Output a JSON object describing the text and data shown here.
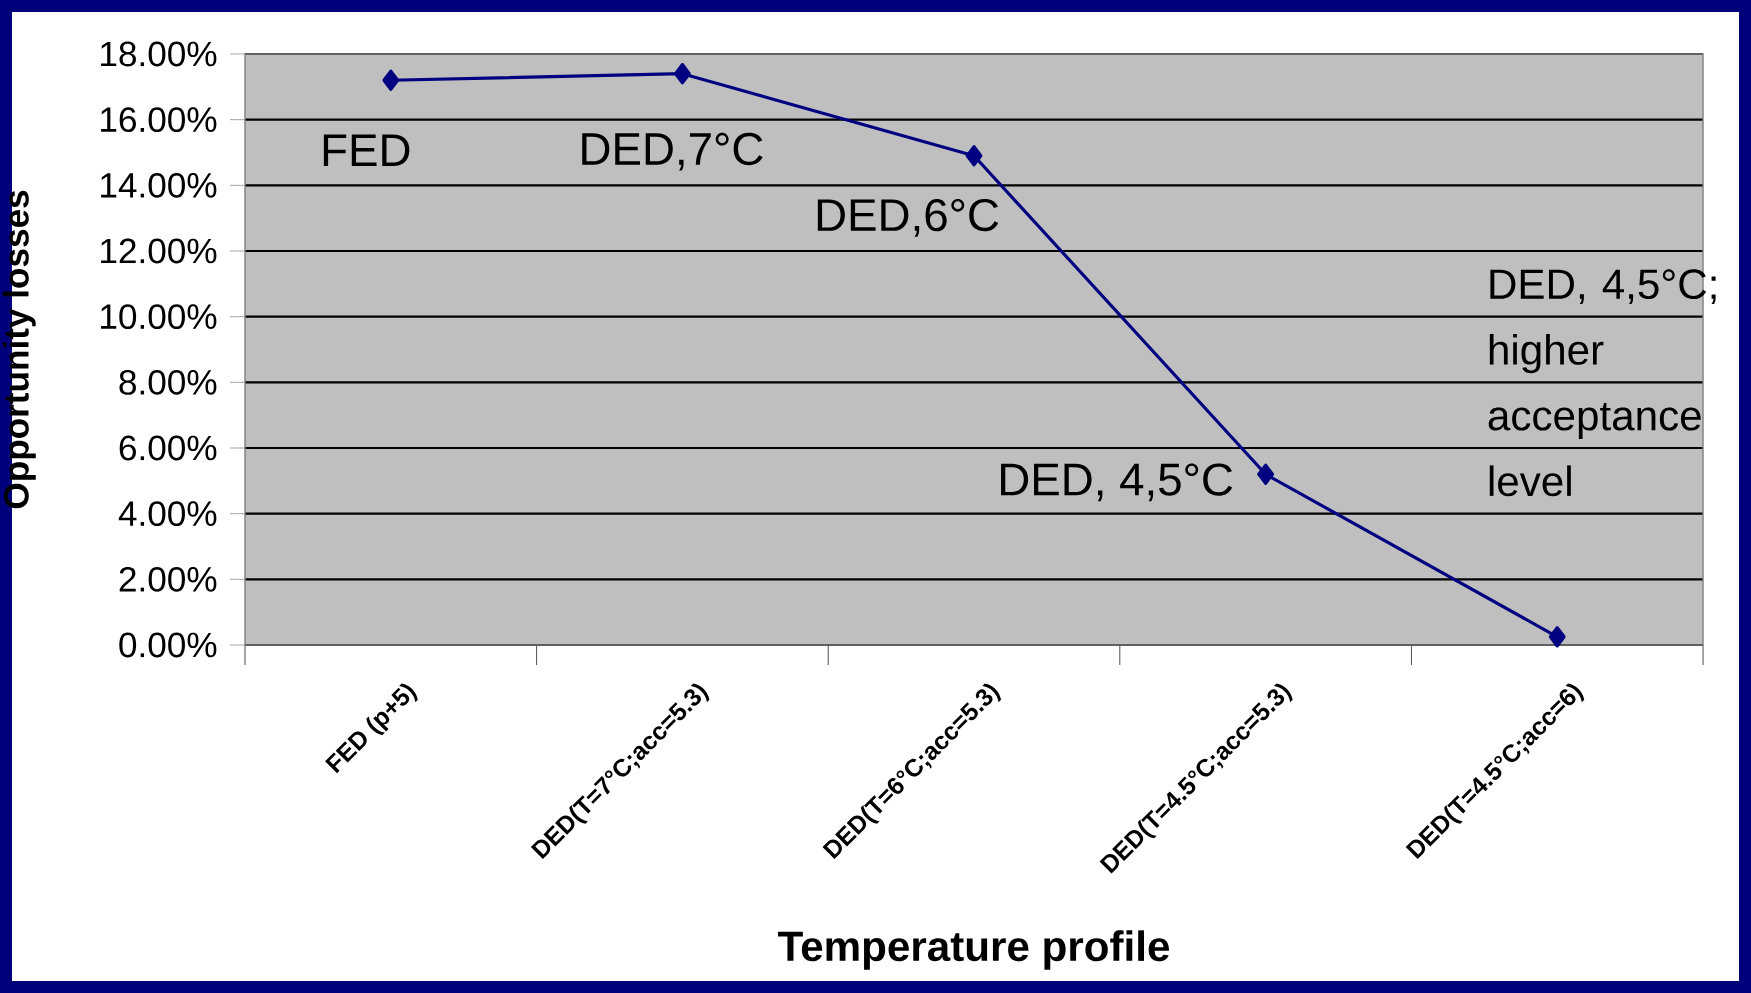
{
  "chart_data": {
    "type": "line",
    "xlabel": "Temperature profile",
    "ylabel": "Opportunity losses",
    "categories": [
      "FED (p+5)",
      "DED(T=7°C;acc=5.3)",
      "DED(T=6°C;acc=5.3)",
      "DED(T=4.5°C;acc=5.3)",
      "DED(T=4.5°C;acc=6)"
    ],
    "series": [
      {
        "color": "#000080",
        "values": [
          17.2,
          17.4,
          14.9,
          5.2,
          0.25
        ]
      }
    ],
    "ylim": [
      0,
      18
    ],
    "yticks": [
      {
        "value": 0,
        "label": "0.00%"
      },
      {
        "value": 2,
        "label": "2.00%"
      },
      {
        "value": 4,
        "label": "4.00%"
      },
      {
        "value": 6,
        "label": "6.00%"
      },
      {
        "value": 8,
        "label": "8.00%"
      },
      {
        "value": 10,
        "label": "10.00%"
      },
      {
        "value": 12,
        "label": "12.00%"
      },
      {
        "value": 14,
        "label": "14.00%"
      },
      {
        "value": 16,
        "label": "16.00%"
      },
      {
        "value": 18,
        "label": "18.00%"
      }
    ],
    "grid": "y",
    "marker": "diamond",
    "line_style": "solid",
    "annotations": [
      "FED",
      "DED,7°C",
      "DED,6°C",
      "DED, 4,5°C",
      "DED, 4,5°C; higher acceptance level"
    ]
  }
}
